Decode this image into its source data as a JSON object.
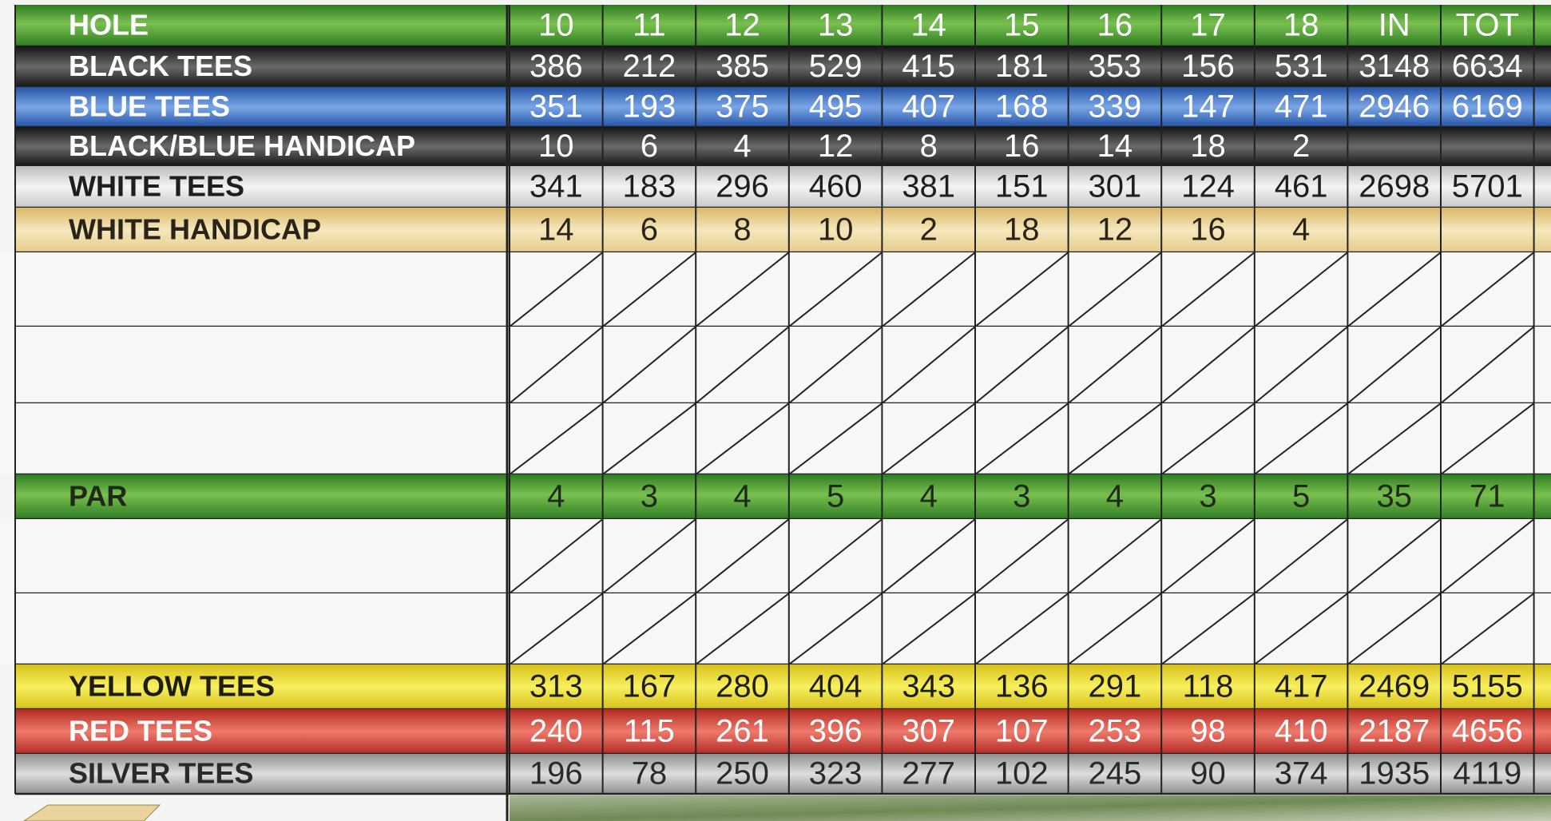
{
  "table": {
    "rows": [
      {
        "label": "HOLE",
        "cells": [
          "10",
          "11",
          "12",
          "13",
          "14",
          "15",
          "16",
          "17",
          "18",
          "IN",
          "TOT"
        ]
      },
      {
        "label": "BLACK TEES",
        "cells": [
          "386",
          "212",
          "385",
          "529",
          "415",
          "181",
          "353",
          "156",
          "531",
          "3148",
          "6634"
        ]
      },
      {
        "label": "BLUE TEES",
        "cells": [
          "351",
          "193",
          "375",
          "495",
          "407",
          "168",
          "339",
          "147",
          "471",
          "2946",
          "6169"
        ]
      },
      {
        "label": "BLACK/BLUE HANDICAP",
        "cells": [
          "10",
          "6",
          "4",
          "12",
          "8",
          "16",
          "14",
          "18",
          "2"
        ]
      },
      {
        "label": "WHITE TEES",
        "cells": [
          "341",
          "183",
          "296",
          "460",
          "381",
          "151",
          "301",
          "124",
          "461",
          "2698",
          "5701"
        ]
      },
      {
        "label": "WHITE HANDICAP",
        "cells": [
          "14",
          "6",
          "8",
          "10",
          "2",
          "18",
          "12",
          "16",
          "4"
        ]
      },
      {
        "label": "PAR",
        "cells": [
          "4",
          "3",
          "4",
          "5",
          "4",
          "3",
          "4",
          "3",
          "5",
          "35",
          "71"
        ]
      },
      {
        "label": "YELLOW TEES",
        "cells": [
          "313",
          "167",
          "280",
          "404",
          "343",
          "136",
          "291",
          "118",
          "417",
          "2469",
          "5155"
        ]
      },
      {
        "label": "RED TEES",
        "cells": [
          "240",
          "115",
          "261",
          "396",
          "307",
          "107",
          "253",
          "98",
          "410",
          "2187",
          "4656"
        ]
      },
      {
        "label": "SILVER TEES",
        "cells": [
          "196",
          "78",
          "250",
          "323",
          "277",
          "102",
          "245",
          "90",
          "374",
          "1935",
          "4119"
        ]
      }
    ]
  }
}
